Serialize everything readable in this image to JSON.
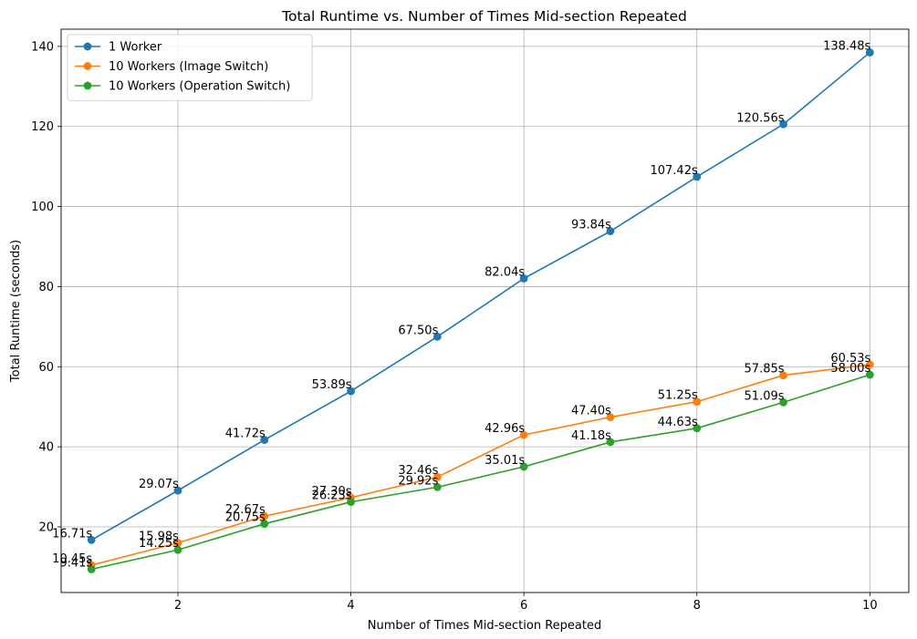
{
  "chart_data": {
    "type": "line",
    "title": "Total Runtime vs. Number of Times Mid-section Repeated",
    "xlabel": "Number of Times Mid-section Repeated",
    "ylabel": "Total Runtime (seconds)",
    "x": [
      1,
      2,
      3,
      4,
      5,
      6,
      7,
      8,
      9,
      10
    ],
    "xlim": [
      0.65,
      10.45
    ],
    "ylim": [
      3.6,
      144.3
    ],
    "xticks": [
      2,
      4,
      6,
      8,
      10
    ],
    "yticks": [
      20,
      40,
      60,
      80,
      100,
      120,
      140
    ],
    "grid": true,
    "legend_position": "top-left",
    "series": [
      {
        "name": "1 Worker",
        "color": "#1f77b4",
        "values": [
          16.71,
          29.07,
          41.72,
          53.89,
          67.5,
          82.04,
          93.84,
          107.42,
          120.56,
          138.48
        ],
        "labels": [
          "16.71s",
          "29.07s",
          "41.72s",
          "53.89s",
          "67.50s",
          "82.04s",
          "93.84s",
          "107.42s",
          "120.56s",
          "138.48s"
        ]
      },
      {
        "name": "10 Workers (Image Switch)",
        "color": "#ff7f0e",
        "values": [
          10.45,
          15.98,
          22.67,
          27.3,
          32.46,
          42.96,
          47.4,
          51.25,
          57.85,
          60.53
        ],
        "labels": [
          "10.45s",
          "15.98s",
          "22.67s",
          "27.30s",
          "32.46s",
          "42.96s",
          "47.40s",
          "51.25s",
          "57.85s",
          "60.53s"
        ]
      },
      {
        "name": "10 Workers (Operation Switch)",
        "color": "#2ca02c",
        "values": [
          9.41,
          14.25,
          20.75,
          26.23,
          29.92,
          35.01,
          41.18,
          44.63,
          51.09,
          58.0
        ],
        "labels": [
          "9.41s",
          "14.25s",
          "20.75s",
          "26.23s",
          "29.92s",
          "35.01s",
          "41.18s",
          "44.63s",
          "51.09s",
          "58.00s"
        ]
      }
    ]
  }
}
